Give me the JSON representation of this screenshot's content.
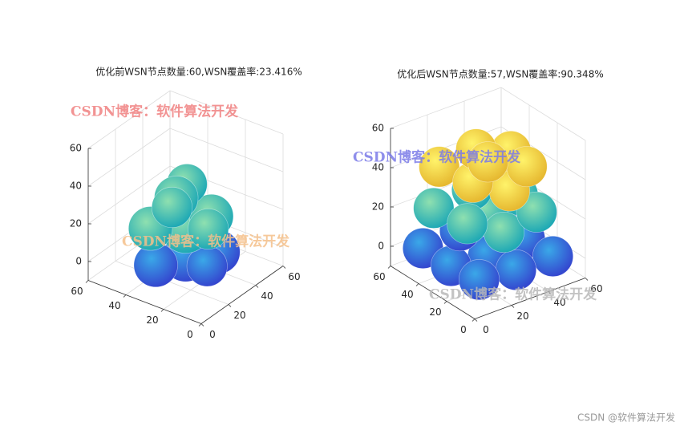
{
  "chart_data": [
    {
      "type": "sphere-coverage",
      "title": "优化前WSN节点数量:60,WSN覆盖率:23.416%",
      "xlim": [
        0,
        60
      ],
      "ylim": [
        0,
        60
      ],
      "zlim": [
        -10,
        60
      ],
      "xticks": [
        0,
        20,
        40,
        60
      ],
      "yticks": [
        0,
        20,
        40,
        60
      ],
      "zticks": [
        0,
        20,
        40,
        60
      ],
      "grid": true
    },
    {
      "type": "sphere-coverage",
      "title": "优化后WSN节点数量:57,WSN覆盖率:90.348%",
      "xlim": [
        0,
        60
      ],
      "ylim": [
        0,
        60
      ],
      "zlim": [
        -10,
        60
      ],
      "xticks": [
        0,
        20,
        40,
        60
      ],
      "yticks": [
        0,
        20,
        40,
        60
      ],
      "zticks": [
        0,
        20,
        40,
        60
      ],
      "grid": true
    }
  ],
  "watermarks": [
    {
      "text": "CSDN博客：软件算法开发",
      "color": "#f08080"
    },
    {
      "text": "CSDN博客：软件算法开发",
      "color": "#f5c08a"
    },
    {
      "text": "CSDN博客：软件算法开发",
      "color": "#7a7ae8"
    },
    {
      "text": "CSDN博客：软件算法开发",
      "color": "#b8b8b8"
    }
  ],
  "footer": "CSDN @软件算法开发"
}
